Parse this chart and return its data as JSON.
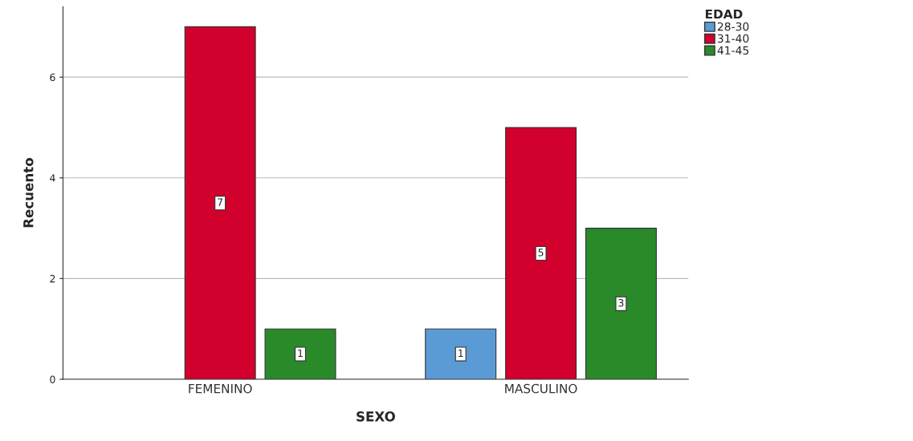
{
  "chart_data": {
    "type": "bar",
    "xlabel": "SEXO",
    "ylabel": "Recuento",
    "legend_title": "EDAD",
    "categories": [
      "FEMENINO",
      "MASCULINO"
    ],
    "series": [
      {
        "name": "28-30",
        "color": "#5b9bd5",
        "values": [
          null,
          1
        ]
      },
      {
        "name": "31-40",
        "color": "#d2002c",
        "values": [
          7,
          5
        ]
      },
      {
        "name": "41-45",
        "color": "#2a8a2a",
        "values": [
          1,
          3
        ]
      }
    ],
    "ylim": [
      0,
      7.4
    ],
    "yticks": [
      0,
      2,
      4,
      6
    ],
    "grid": "y",
    "legend": "top right",
    "data_labels": true
  }
}
